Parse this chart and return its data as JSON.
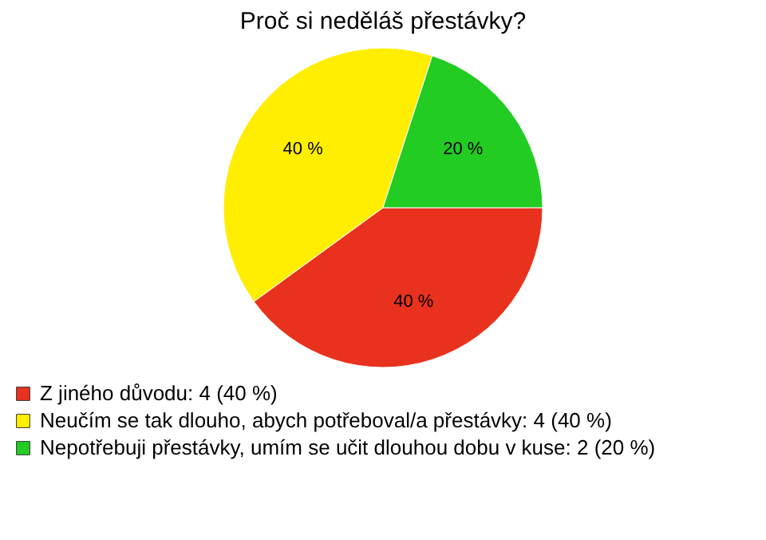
{
  "chart_data": {
    "type": "pie",
    "title": "Proč si neděláš přestávky?",
    "categories": [
      "Z jiného důvodu: 4 (40 %)",
      "Neučím se tak dlouho, abych potřeboval/a přestávky: 4 (40 %)",
      "Nepotřebuji přestávky, umím se učit dlouhou dobu v kuse: 2 (20 %)"
    ],
    "values": [
      40,
      40,
      20
    ],
    "colors": [
      "#e8321e",
      "#ffee00",
      "#22cc22"
    ],
    "value_labels": [
      "40 %",
      "40 %",
      "20 %"
    ],
    "legend": "bottom left"
  }
}
